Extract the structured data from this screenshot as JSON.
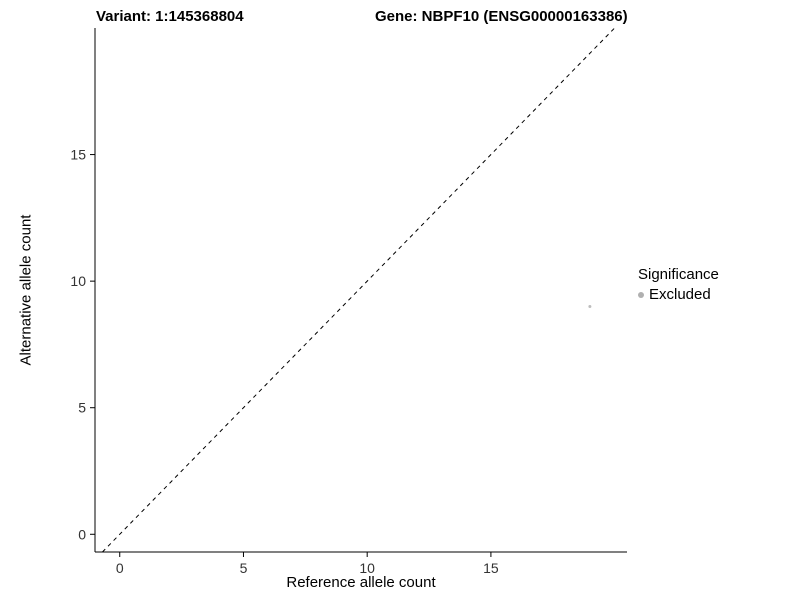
{
  "chart_data": {
    "type": "scatter",
    "title_left": "Variant: 1:145368804",
    "title_right": "Gene: NBPF10 (ENSG00000163386)",
    "xlabel": "Reference allele count",
    "ylabel": "Alternative allele count",
    "xlim": [
      -1,
      20.5
    ],
    "ylim": [
      -0.7,
      20
    ],
    "xticks": [
      0,
      5,
      10,
      15
    ],
    "yticks": [
      0,
      5,
      10,
      15
    ],
    "grid": false,
    "axis_color": "#000000",
    "tick_label_color": "#333333",
    "panel_background": "#ffffff",
    "identity_line": {
      "style": "dashed",
      "from": -0.7,
      "to": 20,
      "color": "#000000"
    },
    "points": [
      {
        "x": 19,
        "y": 9,
        "color": "#bdbdbd",
        "r": 1.5,
        "series": "Excluded"
      }
    ],
    "legend": {
      "title": "Significance",
      "position": "right",
      "entries": [
        {
          "label": "Excluded",
          "color": "#b0b0b0"
        }
      ]
    }
  }
}
